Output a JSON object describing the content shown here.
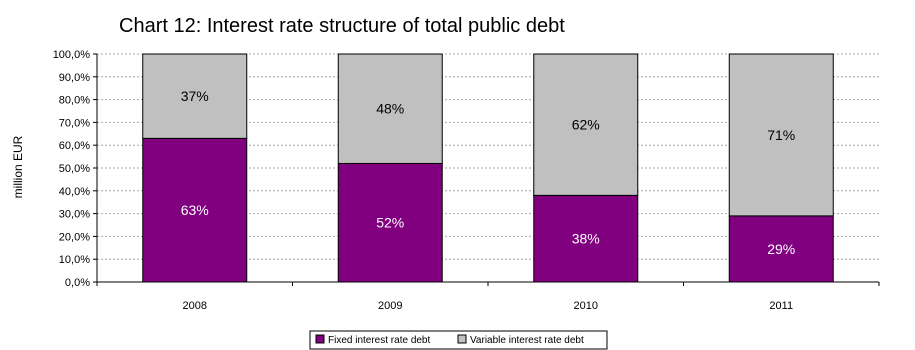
{
  "chart_data": {
    "type": "bar",
    "stacked": true,
    "title": "Chart 12: Interest rate structure of total public debt",
    "xlabel": "",
    "ylabel": "million EUR",
    "categories": [
      "2008",
      "2009",
      "2010",
      "2011"
    ],
    "ylim": [
      0,
      100
    ],
    "yticks": [
      "0,0%",
      "10,0%",
      "20,0%",
      "30,0%",
      "40,0%",
      "50,0%",
      "60,0%",
      "70,0%",
      "80,0%",
      "90,0%",
      "100,0%"
    ],
    "grid": true,
    "legend_position": "bottom",
    "series": [
      {
        "name": "Fixed interest rate debt",
        "values": [
          63,
          52,
          38,
          29
        ],
        "labels": [
          "63%",
          "52%",
          "38%",
          "29%"
        ],
        "color": "#800080",
        "label_color": "#ffffff"
      },
      {
        "name": "Variable interest rate debt",
        "values": [
          37,
          48,
          62,
          71
        ],
        "labels": [
          "37%",
          "48%",
          "62%",
          "71%"
        ],
        "color": "#c0c0c0",
        "label_color": "#000000"
      }
    ]
  }
}
